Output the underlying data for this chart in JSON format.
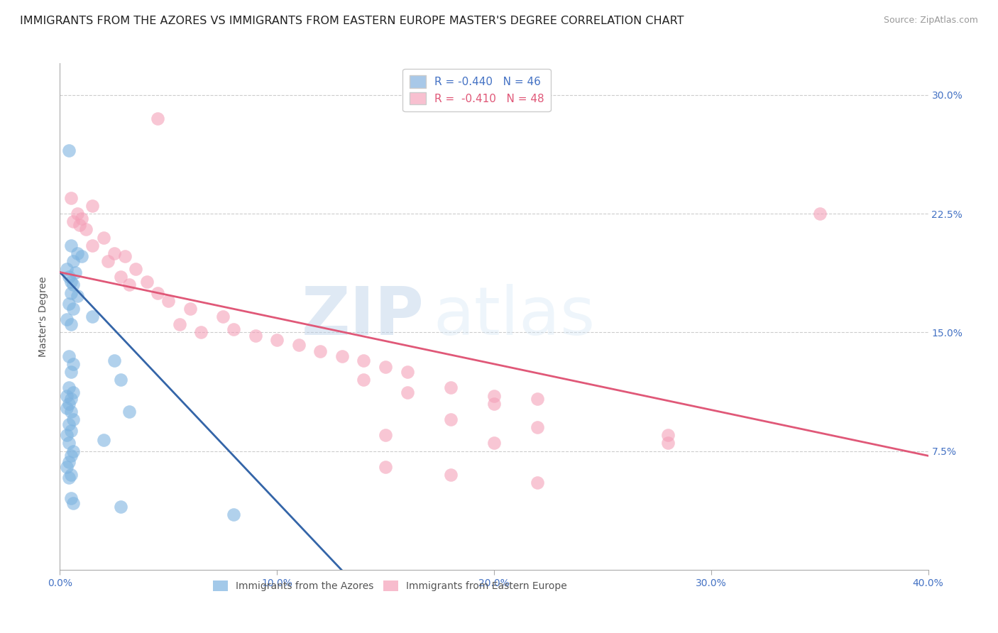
{
  "title": "IMMIGRANTS FROM THE AZORES VS IMMIGRANTS FROM EASTERN EUROPE MASTER'S DEGREE CORRELATION CHART",
  "source": "Source: ZipAtlas.com",
  "ylabel": "Master's Degree",
  "x_tick_labels": [
    "0.0%",
    "",
    "10.0%",
    "",
    "20.0%",
    "",
    "30.0%",
    "",
    "40.0%"
  ],
  "x_tick_values": [
    0.0,
    5.0,
    10.0,
    15.0,
    20.0,
    25.0,
    30.0,
    35.0,
    40.0
  ],
  "x_tick_labels_show": [
    "0.0%",
    "10.0%",
    "20.0%",
    "30.0%",
    "40.0%"
  ],
  "x_tick_values_show": [
    0.0,
    10.0,
    20.0,
    30.0,
    40.0
  ],
  "y_tick_labels": [
    "7.5%",
    "15.0%",
    "22.5%",
    "30.0%"
  ],
  "y_tick_values": [
    7.5,
    15.0,
    22.5,
    30.0
  ],
  "xlim": [
    0.0,
    40.0
  ],
  "ylim": [
    0.0,
    32.0
  ],
  "legend_labels_bottom": [
    "Immigrants from the Azores",
    "Immigrants from Eastern Europe"
  ],
  "blue_color": "#7db3e0",
  "pink_color": "#f4a0b8",
  "blue_line_color": "#3465a8",
  "pink_line_color": "#e05878",
  "watermark_zip": "ZIP",
  "watermark_atlas": "atlas",
  "background_color": "#ffffff",
  "grid_color": "#cccccc",
  "title_fontsize": 11.5,
  "axis_fontsize": 10,
  "azores_points": [
    [
      0.4,
      26.5
    ],
    [
      0.5,
      20.5
    ],
    [
      0.8,
      20.0
    ],
    [
      1.0,
      19.8
    ],
    [
      0.6,
      19.5
    ],
    [
      0.3,
      19.0
    ],
    [
      0.7,
      18.8
    ],
    [
      0.4,
      18.5
    ],
    [
      0.5,
      18.2
    ],
    [
      0.6,
      18.0
    ],
    [
      0.5,
      17.5
    ],
    [
      0.8,
      17.3
    ],
    [
      0.4,
      16.8
    ],
    [
      0.6,
      16.5
    ],
    [
      1.5,
      16.0
    ],
    [
      0.3,
      15.8
    ],
    [
      0.5,
      15.5
    ],
    [
      0.4,
      13.5
    ],
    [
      0.6,
      13.0
    ],
    [
      2.5,
      13.2
    ],
    [
      0.5,
      12.5
    ],
    [
      2.8,
      12.0
    ],
    [
      0.4,
      11.5
    ],
    [
      0.6,
      11.2
    ],
    [
      0.3,
      11.0
    ],
    [
      0.5,
      10.8
    ],
    [
      0.4,
      10.5
    ],
    [
      0.3,
      10.2
    ],
    [
      0.5,
      10.0
    ],
    [
      3.2,
      10.0
    ],
    [
      0.6,
      9.5
    ],
    [
      0.4,
      9.2
    ],
    [
      0.5,
      8.8
    ],
    [
      0.3,
      8.5
    ],
    [
      0.4,
      8.0
    ],
    [
      2.0,
      8.2
    ],
    [
      0.6,
      7.5
    ],
    [
      0.5,
      7.2
    ],
    [
      0.4,
      6.8
    ],
    [
      0.3,
      6.5
    ],
    [
      0.5,
      6.0
    ],
    [
      0.4,
      5.8
    ],
    [
      0.5,
      4.5
    ],
    [
      0.6,
      4.2
    ],
    [
      2.8,
      4.0
    ],
    [
      8.0,
      3.5
    ]
  ],
  "eastern_points": [
    [
      4.5,
      28.5
    ],
    [
      0.5,
      23.5
    ],
    [
      1.5,
      23.0
    ],
    [
      0.8,
      22.5
    ],
    [
      1.0,
      22.2
    ],
    [
      0.6,
      22.0
    ],
    [
      0.9,
      21.8
    ],
    [
      1.2,
      21.5
    ],
    [
      2.0,
      21.0
    ],
    [
      1.5,
      20.5
    ],
    [
      2.5,
      20.0
    ],
    [
      3.0,
      19.8
    ],
    [
      2.2,
      19.5
    ],
    [
      3.5,
      19.0
    ],
    [
      2.8,
      18.5
    ],
    [
      4.0,
      18.2
    ],
    [
      3.2,
      18.0
    ],
    [
      4.5,
      17.5
    ],
    [
      5.0,
      17.0
    ],
    [
      6.0,
      16.5
    ],
    [
      7.5,
      16.0
    ],
    [
      5.5,
      15.5
    ],
    [
      8.0,
      15.2
    ],
    [
      6.5,
      15.0
    ],
    [
      10.0,
      14.5
    ],
    [
      9.0,
      14.8
    ],
    [
      11.0,
      14.2
    ],
    [
      12.0,
      13.8
    ],
    [
      13.0,
      13.5
    ],
    [
      14.0,
      13.2
    ],
    [
      15.0,
      12.8
    ],
    [
      16.0,
      12.5
    ],
    [
      14.0,
      12.0
    ],
    [
      18.0,
      11.5
    ],
    [
      20.0,
      11.0
    ],
    [
      16.0,
      11.2
    ],
    [
      22.0,
      10.8
    ],
    [
      20.0,
      10.5
    ],
    [
      18.0,
      9.5
    ],
    [
      22.0,
      9.0
    ],
    [
      15.0,
      8.5
    ],
    [
      20.0,
      8.0
    ],
    [
      28.0,
      8.5
    ],
    [
      15.0,
      6.5
    ],
    [
      18.0,
      6.0
    ],
    [
      22.0,
      5.5
    ],
    [
      35.0,
      22.5
    ],
    [
      28.0,
      8.0
    ]
  ]
}
